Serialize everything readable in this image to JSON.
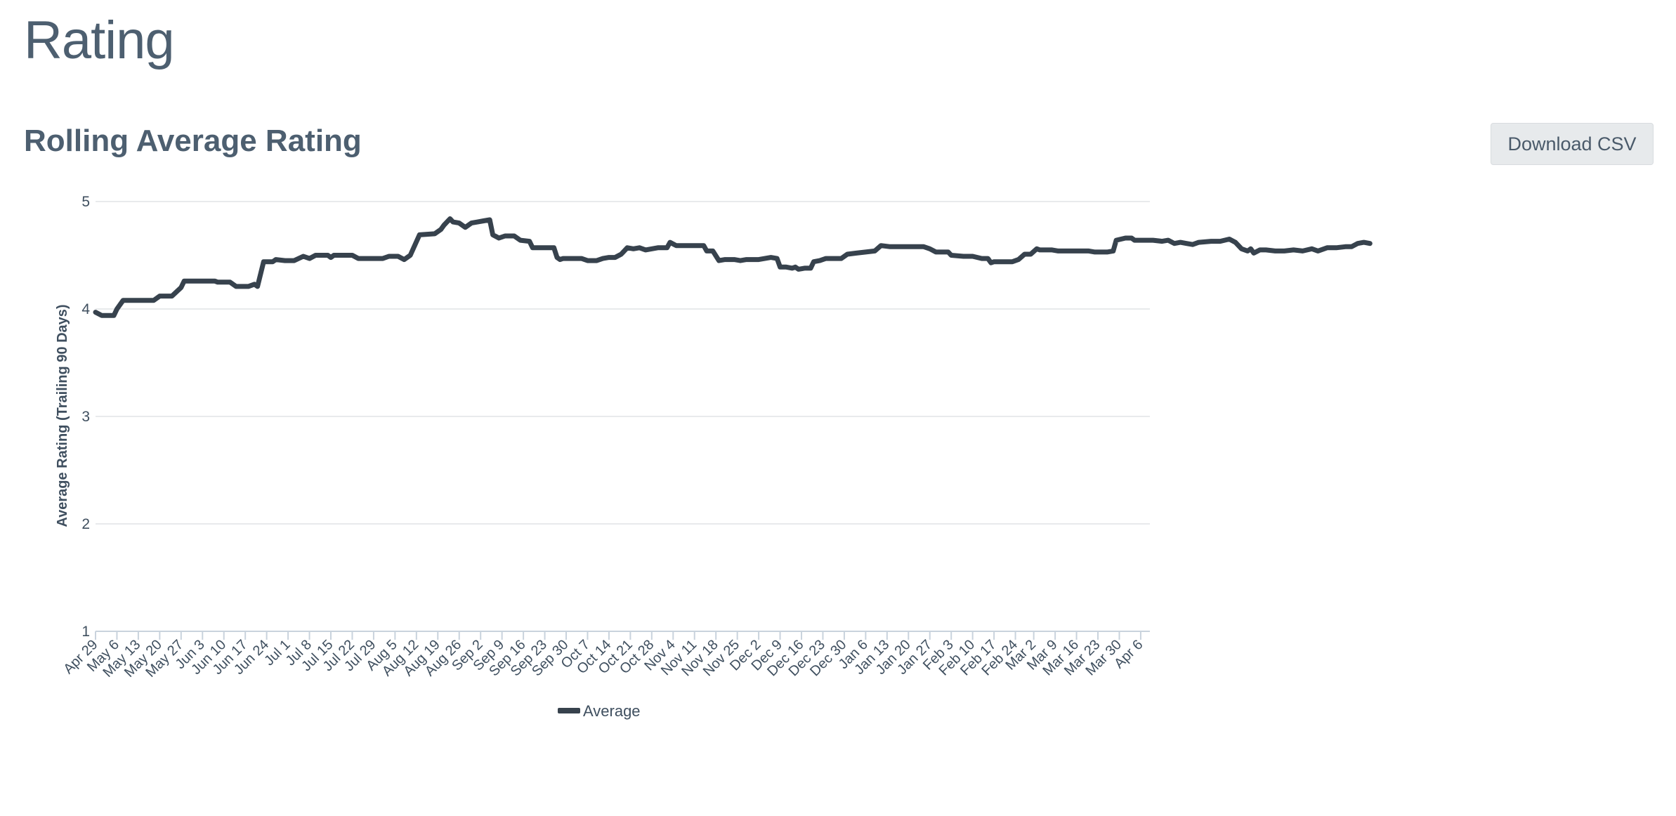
{
  "page": {
    "title": "Rating",
    "section_title": "Rolling Average Rating",
    "download_label": "Download CSV"
  },
  "colors": {
    "line": "#37424d",
    "grid": "#e0e3e6",
    "axis": "#c9d3dd"
  },
  "chart_data": {
    "type": "line",
    "title": "",
    "xlabel": "",
    "ylabel": "Average Rating (Trailing 90 Days)",
    "ylim": [
      1,
      5
    ],
    "yticks": [
      1,
      2,
      3,
      4,
      5
    ],
    "grid": true,
    "legend_position": "bottom",
    "x_start": "Apr 29",
    "x_end": "Apr 9",
    "categories": [
      "Apr 29",
      "May 6",
      "May 13",
      "May 20",
      "May 27",
      "Jun 3",
      "Jun 10",
      "Jun 17",
      "Jun 24",
      "Jul 1",
      "Jul 8",
      "Jul 15",
      "Jul 22",
      "Jul 29",
      "Aug 5",
      "Aug 12",
      "Aug 19",
      "Aug 26",
      "Sep 2",
      "Sep 9",
      "Sep 16",
      "Sep 23",
      "Sep 30",
      "Oct 7",
      "Oct 14",
      "Oct 21",
      "Oct 28",
      "Nov 4",
      "Nov 11",
      "Nov 18",
      "Nov 25",
      "Dec 2",
      "Dec 9",
      "Dec 16",
      "Dec 23",
      "Dec 30",
      "Jan 6",
      "Jan 13",
      "Jan 20",
      "Jan 27",
      "Feb 3",
      "Feb 10",
      "Feb 17",
      "Feb 24",
      "Mar 2",
      "Mar 9",
      "Mar 16",
      "Mar 23",
      "Mar 30",
      "Apr 6"
    ],
    "series": [
      {
        "name": "Average",
        "points": [
          [
            "Apr 29",
            3.97
          ],
          [
            "May 1",
            3.94
          ],
          [
            "May 3",
            3.94
          ],
          [
            "May 5",
            3.94
          ],
          [
            "May 6",
            4.0
          ],
          [
            "May 8",
            4.08
          ],
          [
            "May 13",
            4.08
          ],
          [
            "May 18",
            4.08
          ],
          [
            "May 20",
            4.12
          ],
          [
            "May 24",
            4.12
          ],
          [
            "May 27",
            4.2
          ],
          [
            "May 28",
            4.26
          ],
          [
            "Jun 3",
            4.26
          ],
          [
            "Jun 7",
            4.26
          ],
          [
            "Jun 8",
            4.25
          ],
          [
            "Jun 12",
            4.25
          ],
          [
            "Jun 14",
            4.21
          ],
          [
            "Jun 18",
            4.21
          ],
          [
            "Jun 20",
            4.23
          ],
          [
            "Jun 21",
            4.21
          ],
          [
            "Jun 23",
            4.44
          ],
          [
            "Jun 26",
            4.44
          ],
          [
            "Jun 27",
            4.46
          ],
          [
            "Jun 30",
            4.45
          ],
          [
            "Jul 3",
            4.45
          ],
          [
            "Jul 6",
            4.49
          ],
          [
            "Jul 8",
            4.47
          ],
          [
            "Jul 10",
            4.5
          ],
          [
            "Jul 14",
            4.5
          ],
          [
            "Jul 15",
            4.48
          ],
          [
            "Jul 16",
            4.5
          ],
          [
            "Jul 22",
            4.5
          ],
          [
            "Jul 24",
            4.47
          ],
          [
            "Jul 28",
            4.47
          ],
          [
            "Aug 1",
            4.47
          ],
          [
            "Aug 3",
            4.49
          ],
          [
            "Aug 6",
            4.49
          ],
          [
            "Aug 8",
            4.46
          ],
          [
            "Aug 10",
            4.5
          ],
          [
            "Aug 13",
            4.69
          ],
          [
            "Aug 18",
            4.7
          ],
          [
            "Aug 20",
            4.74
          ],
          [
            "Aug 21",
            4.78
          ],
          [
            "Aug 22",
            4.81
          ],
          [
            "Aug 23",
            4.84
          ],
          [
            "Aug 24",
            4.81
          ],
          [
            "Aug 26",
            4.8
          ],
          [
            "Aug 28",
            4.76
          ],
          [
            "Aug 30",
            4.8
          ],
          [
            "Sep 1",
            4.81
          ],
          [
            "Sep 3",
            4.82
          ],
          [
            "Sep 5",
            4.83
          ],
          [
            "Sep 6",
            4.69
          ],
          [
            "Sep 8",
            4.66
          ],
          [
            "Sep 10",
            4.68
          ],
          [
            "Sep 13",
            4.68
          ],
          [
            "Sep 15",
            4.64
          ],
          [
            "Sep 18",
            4.63
          ],
          [
            "Sep 19",
            4.57
          ],
          [
            "Sep 26",
            4.57
          ],
          [
            "Sep 27",
            4.48
          ],
          [
            "Sep 28",
            4.46
          ],
          [
            "Sep 29",
            4.47
          ],
          [
            "Oct 5",
            4.47
          ],
          [
            "Oct 7",
            4.45
          ],
          [
            "Oct 10",
            4.45
          ],
          [
            "Oct 12",
            4.47
          ],
          [
            "Oct 14",
            4.48
          ],
          [
            "Oct 16",
            4.48
          ],
          [
            "Oct 18",
            4.51
          ],
          [
            "Oct 20",
            4.57
          ],
          [
            "Oct 22",
            4.56
          ],
          [
            "Oct 24",
            4.57
          ],
          [
            "Oct 26",
            4.55
          ],
          [
            "Oct 30",
            4.57
          ],
          [
            "Nov 2",
            4.57
          ],
          [
            "Nov 3",
            4.62
          ],
          [
            "Nov 5",
            4.59
          ],
          [
            "Nov 14",
            4.59
          ],
          [
            "Nov 15",
            4.54
          ],
          [
            "Nov 17",
            4.54
          ],
          [
            "Nov 19",
            4.45
          ],
          [
            "Nov 21",
            4.46
          ],
          [
            "Nov 24",
            4.46
          ],
          [
            "Nov 26",
            4.45
          ],
          [
            "Nov 28",
            4.46
          ],
          [
            "Dec 2",
            4.46
          ],
          [
            "Dec 4",
            4.47
          ],
          [
            "Dec 6",
            4.48
          ],
          [
            "Dec 8",
            4.47
          ],
          [
            "Dec 9",
            4.39
          ],
          [
            "Dec 11",
            4.39
          ],
          [
            "Dec 13",
            4.38
          ],
          [
            "Dec 14",
            4.39
          ],
          [
            "Dec 15",
            4.37
          ],
          [
            "Dec 17",
            4.38
          ],
          [
            "Dec 19",
            4.38
          ],
          [
            "Dec 20",
            4.44
          ],
          [
            "Dec 22",
            4.45
          ],
          [
            "Dec 24",
            4.47
          ],
          [
            "Dec 29",
            4.47
          ],
          [
            "Dec 31",
            4.51
          ],
          [
            "Jan 3",
            4.52
          ],
          [
            "Jan 6",
            4.53
          ],
          [
            "Jan 9",
            4.54
          ],
          [
            "Jan 11",
            4.59
          ],
          [
            "Jan 14",
            4.58
          ],
          [
            "Jan 18",
            4.58
          ],
          [
            "Jan 22",
            4.58
          ],
          [
            "Jan 25",
            4.58
          ],
          [
            "Jan 27",
            4.56
          ],
          [
            "Jan 29",
            4.53
          ],
          [
            "Feb 2",
            4.53
          ],
          [
            "Feb 3",
            4.5
          ],
          [
            "Feb 7",
            4.49
          ],
          [
            "Feb 10",
            4.49
          ],
          [
            "Feb 13",
            4.47
          ],
          [
            "Feb 15",
            4.47
          ],
          [
            "Feb 16",
            4.43
          ],
          [
            "Feb 17",
            4.44
          ],
          [
            "Feb 23",
            4.44
          ],
          [
            "Feb 25",
            4.46
          ],
          [
            "Feb 27",
            4.51
          ],
          [
            "Mar 1",
            4.51
          ],
          [
            "Mar 3",
            4.56
          ],
          [
            "Mar 4",
            4.55
          ],
          [
            "Mar 8",
            4.55
          ],
          [
            "Mar 10",
            4.54
          ],
          [
            "Mar 20",
            4.54
          ],
          [
            "Mar 22",
            4.53
          ],
          [
            "Mar 26",
            4.53
          ],
          [
            "Mar 28",
            4.54
          ],
          [
            "Mar 29",
            4.64
          ],
          [
            "Apr 1",
            4.66
          ],
          [
            "Apr 3",
            4.66
          ],
          [
            "Apr 4",
            4.64
          ],
          [
            "Apr 10",
            4.64
          ],
          [
            "Apr 13",
            4.63
          ],
          [
            "Apr 15",
            4.64
          ],
          [
            "Apr 17",
            4.61
          ],
          [
            "Apr 19",
            4.62
          ],
          [
            "Apr 21",
            4.61
          ],
          [
            "Apr 23",
            4.6
          ],
          [
            "Apr 25",
            4.62
          ],
          [
            "Apr 29",
            4.63
          ],
          [
            "May 2",
            4.63
          ],
          [
            "May 5",
            4.65
          ],
          [
            "May 7",
            4.62
          ],
          [
            "May 9",
            4.56
          ],
          [
            "May 11",
            4.54
          ],
          [
            "May 12",
            4.56
          ],
          [
            "May 13",
            4.52
          ],
          [
            "May 15",
            4.55
          ],
          [
            "May 17",
            4.55
          ],
          [
            "May 20",
            4.54
          ],
          [
            "May 23",
            4.54
          ],
          [
            "May 26",
            4.55
          ],
          [
            "May 29",
            4.54
          ],
          [
            "Jun 1",
            4.56
          ],
          [
            "Jun 3",
            4.54
          ],
          [
            "Jun 6",
            4.57
          ],
          [
            "Jun 9",
            4.57
          ],
          [
            "Jun 12",
            4.58
          ],
          [
            "Jun 14",
            4.58
          ],
          [
            "Jun 16",
            4.61
          ],
          [
            "Jun 18",
            4.62
          ],
          [
            "Jun 20",
            4.61
          ]
        ]
      }
    ]
  }
}
